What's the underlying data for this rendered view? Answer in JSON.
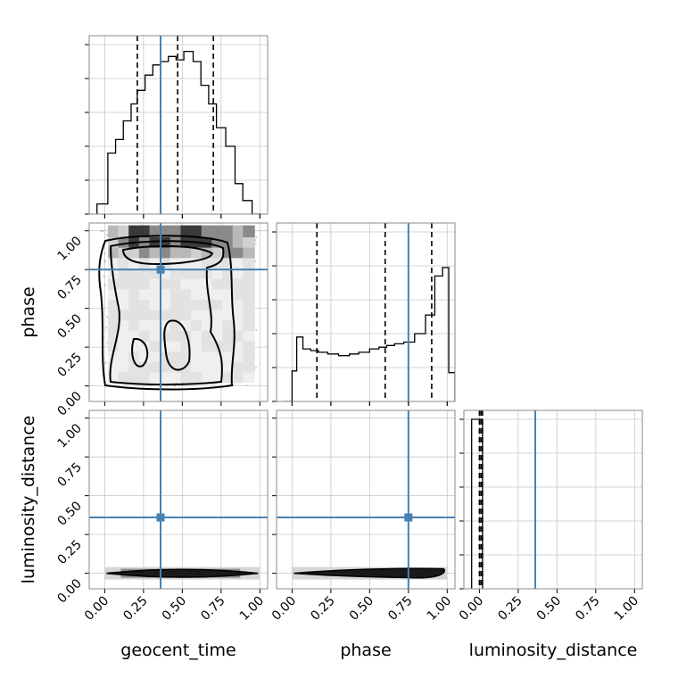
{
  "chart_data": {
    "type": "corner",
    "parameters": [
      "geocent_time",
      "phase",
      "luminosity_distance"
    ],
    "truths": {
      "geocent_time": 0.36,
      "phase": 0.75,
      "luminosity_distance": 0.36
    },
    "truth_color": "#4682b4",
    "axis_range": [
      -0.1,
      1.05
    ],
    "tick_labels": [
      "0.00",
      "0.25",
      "0.50",
      "0.75",
      "1.00"
    ],
    "grid": true,
    "panels": {
      "geocent_time_hist": {
        "bin_edges": [
          -0.05,
          0.02,
          0.07,
          0.12,
          0.17,
          0.21,
          0.26,
          0.31,
          0.36,
          0.41,
          0.46,
          0.51,
          0.57,
          0.62,
          0.67,
          0.72,
          0.78,
          0.84,
          0.89,
          0.95,
          1.01
        ],
        "heights": [
          0.06,
          0.36,
          0.44,
          0.55,
          0.65,
          0.73,
          0.82,
          0.88,
          0.9,
          0.93,
          0.91,
          0.96,
          0.9,
          0.76,
          0.65,
          0.51,
          0.4,
          0.18,
          0.08,
          0.0
        ],
        "quantiles": [
          0.21,
          0.47,
          0.7
        ]
      },
      "phase_hist": {
        "bin_edges": [
          -0.05,
          0.0,
          0.03,
          0.07,
          0.12,
          0.17,
          0.23,
          0.3,
          0.37,
          0.43,
          0.5,
          0.56,
          0.61,
          0.66,
          0.72,
          0.79,
          0.86,
          0.92,
          0.97,
          1.01,
          1.05
        ],
        "heights": [
          0.0,
          0.18,
          0.38,
          0.31,
          0.3,
          0.29,
          0.28,
          0.27,
          0.28,
          0.29,
          0.31,
          0.32,
          0.33,
          0.34,
          0.35,
          0.4,
          0.51,
          0.74,
          0.79,
          0.17
        ],
        "quantiles": [
          0.16,
          0.6,
          0.9
        ]
      },
      "luminosity_distance_hist": {
        "bin_edges": [
          -0.05,
          0.02
        ],
        "heights": [
          1.0
        ],
        "quantiles": [
          0.0,
          0.01,
          0.02
        ]
      },
      "phase_vs_geocent_time": {
        "x_range": [
          0.0,
          0.97
        ],
        "y_range": [
          0.0,
          1.0
        ]
      },
      "luminosity_distance_vs_geocent_time": {
        "x_range": [
          0.0,
          1.0
        ],
        "y_value": 0.0
      },
      "luminosity_distance_vs_phase": {
        "x_range": [
          0.0,
          1.0
        ],
        "y_value": 0.0
      }
    }
  }
}
